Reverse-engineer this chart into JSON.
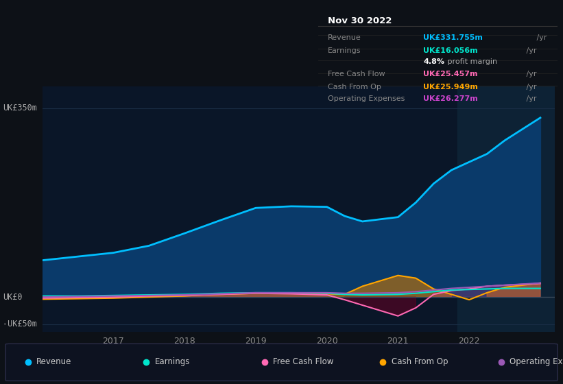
{
  "bg_color": "#0d1117",
  "plot_bg_color": "#0a1628",
  "highlight_bg": "#0d2035",
  "grid_color": "#1a2d45",
  "zero_line_color": "#3a4a5a",
  "ylim": [
    -65,
    390
  ],
  "xlim": [
    2016.0,
    2023.2
  ],
  "ytick_labels": [
    {
      "val": 350,
      "label": "UK£350m"
    },
    {
      "val": 0,
      "label": "UK£0"
    },
    {
      "val": -50,
      "label": "-UK£50m"
    }
  ],
  "xtick_vals": [
    2017,
    2018,
    2019,
    2020,
    2021,
    2022
  ],
  "xtick_labels": [
    "2017",
    "2018",
    "2019",
    "2020",
    "2021",
    "2022"
  ],
  "highlight_x_start": 2021.83,
  "highlight_x_end": 2023.2,
  "legend": [
    {
      "label": "Revenue",
      "color": "#00bfff"
    },
    {
      "label": "Earnings",
      "color": "#00e5cc"
    },
    {
      "label": "Free Cash Flow",
      "color": "#ff69b4"
    },
    {
      "label": "Cash From Op",
      "color": "#ffa500"
    },
    {
      "label": "Operating Expenses",
      "color": "#9b59b6"
    }
  ],
  "infobox": {
    "date": "Nov 30 2022",
    "rows": [
      {
        "label": "Revenue",
        "value": "UK£331.755m",
        "suffix": " /yr",
        "color": "#00bfff",
        "bold_prefix": "",
        "extra": ""
      },
      {
        "label": "Earnings",
        "value": "UK£16.056m",
        "suffix": " /yr",
        "color": "#00e5cc",
        "bold_prefix": "",
        "extra": ""
      },
      {
        "label": "",
        "value": "",
        "suffix": "",
        "color": "",
        "bold_prefix": "4.8%",
        "extra": " profit margin"
      },
      {
        "label": "Free Cash Flow",
        "value": "UK£25.457m",
        "suffix": " /yr",
        "color": "#ff69b4",
        "bold_prefix": "",
        "extra": ""
      },
      {
        "label": "Cash From Op",
        "value": "UK£25.949m",
        "suffix": " /yr",
        "color": "#ffa500",
        "bold_prefix": "",
        "extra": ""
      },
      {
        "label": "Operating Expenses",
        "value": "UK£26.277m",
        "suffix": " /yr",
        "color": "#cc44cc",
        "bold_prefix": "",
        "extra": ""
      }
    ]
  },
  "series": {
    "x": [
      2016.0,
      2016.5,
      2017.0,
      2017.5,
      2018.0,
      2018.25,
      2018.5,
      2019.0,
      2019.5,
      2020.0,
      2020.25,
      2020.5,
      2021.0,
      2021.25,
      2021.5,
      2021.75,
      2022.0,
      2022.25,
      2022.5,
      2023.0
    ],
    "revenue": [
      68,
      75,
      82,
      95,
      118,
      130,
      142,
      165,
      168,
      167,
      150,
      140,
      148,
      175,
      210,
      235,
      250,
      265,
      290,
      332
    ],
    "earnings": [
      2,
      2,
      3,
      4,
      5,
      6,
      7,
      8,
      8,
      7,
      5,
      4,
      5,
      7,
      10,
      13,
      14,
      15,
      16,
      16
    ],
    "free_cash_flow": [
      -2,
      -1,
      0,
      2,
      3,
      4,
      5,
      7,
      6,
      4,
      -5,
      -15,
      -35,
      -20,
      5,
      12,
      15,
      20,
      22,
      25
    ],
    "cash_from_op": [
      -4,
      -3,
      -2,
      0,
      2,
      4,
      5,
      7,
      7,
      6,
      5,
      20,
      40,
      35,
      15,
      5,
      -5,
      8,
      18,
      26
    ],
    "operating_expenses": [
      0,
      1,
      2,
      3,
      4,
      5,
      6,
      8,
      8,
      8,
      7,
      7,
      8,
      10,
      13,
      16,
      18,
      20,
      22,
      26
    ]
  }
}
